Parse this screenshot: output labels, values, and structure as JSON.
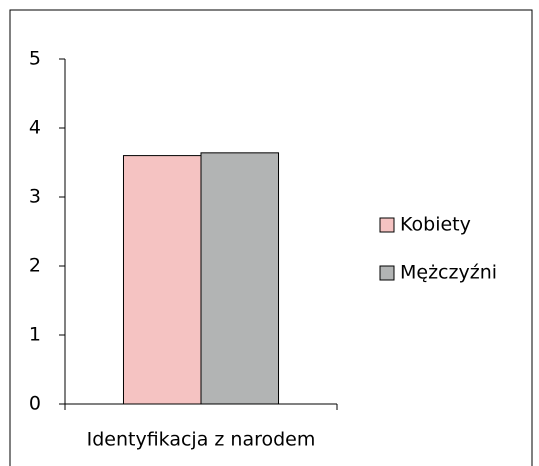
{
  "chart_data": {
    "type": "bar",
    "categories": [
      "Identyfikacja z narodem"
    ],
    "series": [
      {
        "name": "Kobiety",
        "color": "#f5c3c2",
        "values": [
          3.6
        ]
      },
      {
        "name": "Mężczyźni",
        "color": "#b2b4b4",
        "values": [
          3.64
        ]
      }
    ],
    "ylim": [
      0,
      5
    ],
    "yticks": [
      0,
      1,
      2,
      3,
      4,
      5
    ],
    "legend": "right"
  }
}
